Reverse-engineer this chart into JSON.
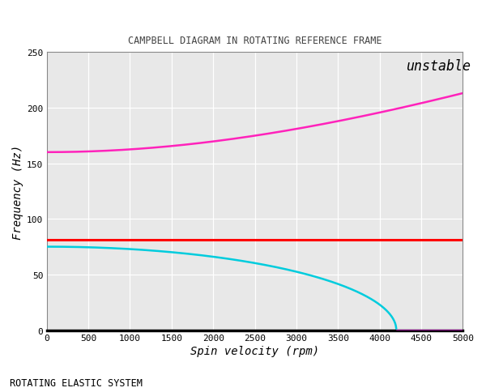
{
  "title": "CAMPBELL DIAGRAM IN ROTATING REFERENCE FRAME",
  "xlabel": "Spin velocity (rpm)",
  "ylabel": "Frequency (Hz)",
  "subtitle": "ROTATING ELASTIC SYSTEM",
  "unstable_label": "unstable",
  "xlim": [
    0,
    5000
  ],
  "ylim": [
    0,
    250
  ],
  "xticks": [
    0,
    500,
    1000,
    1500,
    2000,
    2500,
    3000,
    3500,
    4000,
    4500,
    5000
  ],
  "yticks": [
    0,
    50,
    100,
    150,
    200,
    250
  ],
  "figure_bg": "#ffffff",
  "plot_bg": "#e8e8e8",
  "grid_color": "#ffffff",
  "magenta_line_color": "#ff22bb",
  "cyan_line_color": "#00ccdd",
  "red_line_color": "#ff0000",
  "magenta_flat_color": "#cc00cc",
  "rpm_start": 0,
  "rpm_end": 5000,
  "num_points": 1000,
  "f0_upper": 160.0,
  "f0_cyan": 75.0,
  "rpm_cyan_zero": 4200.0,
  "f_red": 81.0,
  "c_upper": 1.688
}
